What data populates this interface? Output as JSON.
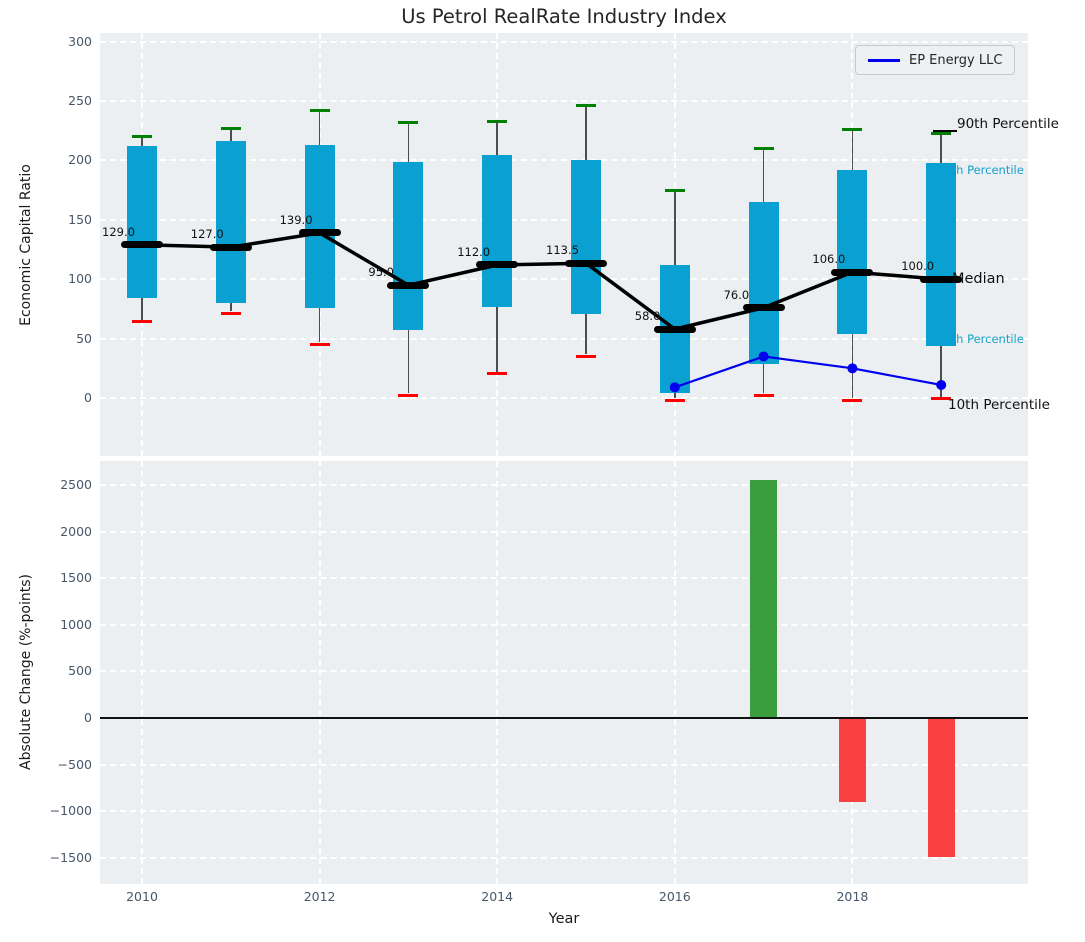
{
  "figure": {
    "title": "Us Petrol RealRate Industry Index"
  },
  "chart_data": [
    {
      "type": "boxplot",
      "title": "Us Petrol RealRate Industry Index",
      "ylabel": "Economic Capital Ratio",
      "yticks": [
        300,
        250,
        200,
        150,
        100,
        50,
        0
      ],
      "ylim": [
        -48.8,
        307.3
      ],
      "xlim": [
        2009.52,
        2019.97
      ],
      "grid": true,
      "legend": {
        "position": "upper right",
        "entries": [
          {
            "label": "EP Energy LLC",
            "color": "#0000ee"
          }
        ]
      },
      "categories": [
        2010,
        2011,
        2012,
        2013,
        2014,
        2015,
        2016,
        2017,
        2018,
        2019
      ],
      "boxes": [
        {
          "year": 2010,
          "p10": 66,
          "p25": 84,
          "median": 129.0,
          "p75": 212,
          "p90": 220,
          "label": "129.0"
        },
        {
          "year": 2011,
          "p10": 73,
          "p25": 80,
          "median": 127.0,
          "p75": 216,
          "p90": 227,
          "label": "127.0"
        },
        {
          "year": 2012,
          "p10": 47,
          "p25": 76,
          "median": 139.0,
          "p75": 213,
          "p90": 242,
          "label": "139.0"
        },
        {
          "year": 2013,
          "p10": 4,
          "p25": 57,
          "median": 95.0,
          "p75": 199,
          "p90": 232,
          "label": "95.0"
        },
        {
          "year": 2014,
          "p10": 22,
          "p25": 77,
          "median": 112.0,
          "p75": 205,
          "p90": 233,
          "label": "112.0"
        },
        {
          "year": 2015,
          "p10": 37,
          "p25": 71,
          "median": 113.5,
          "p75": 200,
          "p90": 246,
          "label": "113.5"
        },
        {
          "year": 2016,
          "p10": 0,
          "p25": 4,
          "median": 58.0,
          "p75": 112,
          "p90": 175,
          "label": "58.0"
        },
        {
          "year": 2017,
          "p10": 4,
          "p25": 29,
          "median": 76.0,
          "p75": 165,
          "p90": 210,
          "label": "76.0"
        },
        {
          "year": 2018,
          "p10": 0,
          "p25": 54,
          "median": 106.0,
          "p75": 192,
          "p90": 226,
          "label": "106.0"
        },
        {
          "year": 2019,
          "p10": 1,
          "p25": 44,
          "median": 100.0,
          "p75": 198,
          "p90": 223,
          "label": "100.0"
        }
      ],
      "series": [
        {
          "name": "EP Energy LLC",
          "x": [
            2016,
            2017,
            2018,
            2019
          ],
          "y": [
            9,
            35,
            25,
            11
          ],
          "color": "#0000ee"
        }
      ],
      "annotations": [
        {
          "text": "90th Percentile",
          "style": "big"
        },
        {
          "text": "75th Percentile",
          "style": "cyan"
        },
        {
          "text": "Median",
          "style": "big"
        },
        {
          "text": "25th Percentile",
          "style": "cyan"
        },
        {
          "text": "10th Percentile",
          "style": "big"
        }
      ],
      "colors": {
        "box": "#0aa0d2",
        "median_line": "#000000",
        "cap_top": "#008000",
        "cap_bottom": "#ff0000",
        "whisker": "#4d4d4d"
      }
    },
    {
      "type": "bar",
      "ylabel": "Absolute Change (%-points)",
      "xlabel": "Year",
      "yticks": [
        2500,
        2000,
        1500,
        1000,
        500,
        0,
        -500,
        -1000,
        -1500
      ],
      "ylim": [
        -1781,
        2757
      ],
      "xticks": [
        2010,
        2012,
        2014,
        2016,
        2018
      ],
      "grid": true,
      "zero_line": true,
      "bars": [
        {
          "year": 2017,
          "value": 2550,
          "color": "#3a9e3f"
        },
        {
          "year": 2018,
          "value": -900,
          "color": "#fa4141"
        },
        {
          "year": 2019,
          "value": -1490,
          "color": "#fa4141"
        }
      ]
    }
  ]
}
